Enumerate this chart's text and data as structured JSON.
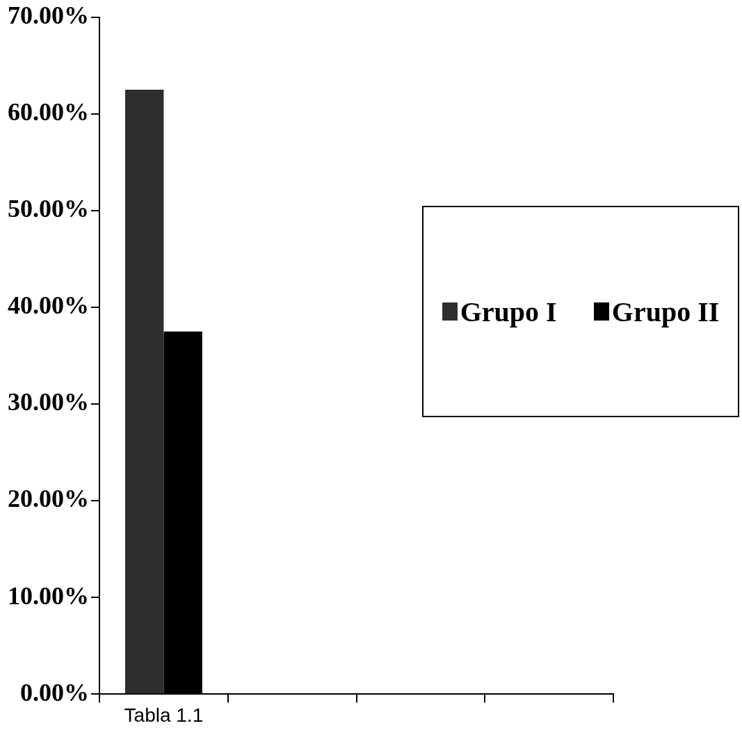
{
  "chart_data": {
    "type": "bar",
    "categories": [
      "Tabla 1.1",
      null,
      null,
      null
    ],
    "series": [
      {
        "name": "Grupo I",
        "color": "#2e2e2e",
        "values": [
          62.5,
          null,
          null,
          null
        ]
      },
      {
        "name": "Grupo II",
        "color": "#000000",
        "values": [
          37.5,
          null,
          null,
          null
        ]
      }
    ],
    "ylim": [
      0,
      70
    ],
    "yticks": [
      {
        "value": 0,
        "label": "0.00%"
      },
      {
        "value": 10,
        "label": "10.00%"
      },
      {
        "value": 20,
        "label": "20.00%"
      },
      {
        "value": 30,
        "label": "30.00%"
      },
      {
        "value": 40,
        "label": "40.00%"
      },
      {
        "value": 50,
        "label": "50.00%"
      },
      {
        "value": 60,
        "label": "60.00%"
      },
      {
        "value": 70,
        "label": "70.00%"
      }
    ],
    "grid": false,
    "legend": "right"
  }
}
